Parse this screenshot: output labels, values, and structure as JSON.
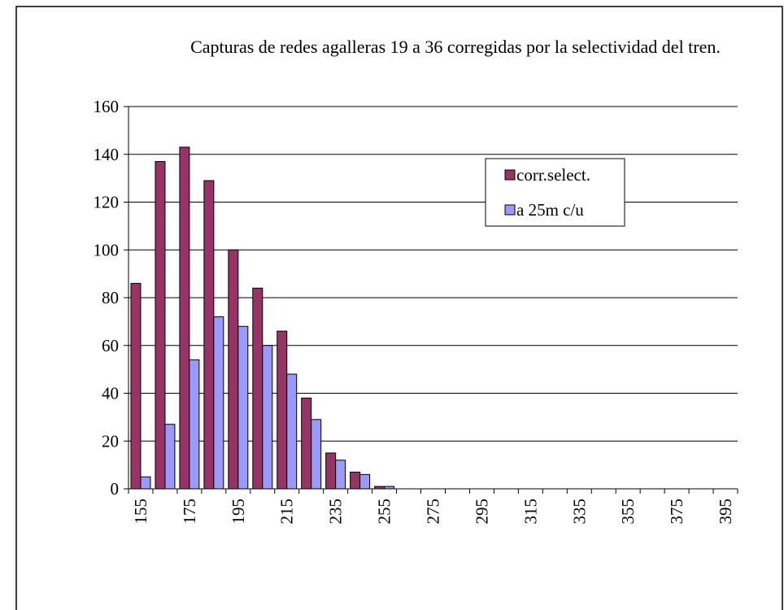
{
  "chart_data": {
    "type": "bar",
    "title": "Capturas de redes agalleras 19 a 36 corregidas por la selectividad del tren.",
    "categories": [
      155,
      null,
      175,
      null,
      195,
      null,
      215,
      null,
      235,
      null,
      255,
      null,
      275,
      null,
      295,
      null,
      315,
      null,
      335,
      null,
      355,
      null,
      375,
      null,
      395
    ],
    "series": [
      {
        "name": "corr.select.",
        "color": "#993366",
        "values": [
          86,
          137,
          143,
          129,
          100,
          84,
          66,
          38,
          15,
          7,
          1,
          0,
          0,
          0,
          0,
          0,
          0,
          0,
          0,
          0,
          0,
          0,
          0,
          0,
          0
        ]
      },
      {
        "name": "a 25m c/u",
        "color": "#9999ff",
        "values": [
          5,
          27,
          54,
          72,
          68,
          60,
          48,
          29,
          12,
          6,
          1,
          0,
          0,
          0,
          0,
          0,
          0,
          0,
          0,
          0,
          0,
          0,
          0,
          0,
          0
        ]
      }
    ],
    "ylim": [
      0,
      160
    ],
    "yticks": [
      0,
      20,
      40,
      60,
      80,
      100,
      120,
      140,
      160
    ],
    "grid": true,
    "legend": "upper-right"
  }
}
